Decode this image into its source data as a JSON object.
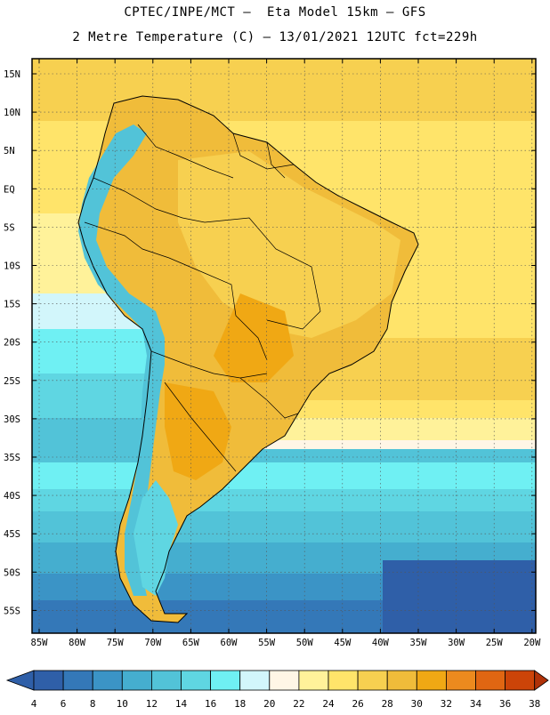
{
  "header": {
    "line1": "CPTEC/INPE/MCT –  Eta Model 15km – GFS",
    "line2": "2 Metre Temperature (C) – 13/01/2021 12UTC fct=229h"
  },
  "axes": {
    "lat_labels": [
      "15N",
      "10N",
      "5N",
      "EQ",
      "5S",
      "10S",
      "15S",
      "20S",
      "25S",
      "30S",
      "35S",
      "40S",
      "45S",
      "50S",
      "55S"
    ],
    "lon_labels": [
      "85W",
      "80W",
      "75W",
      "70W",
      "65W",
      "60W",
      "55W",
      "50W",
      "45W",
      "40W",
      "35W",
      "30W",
      "25W",
      "20W"
    ]
  },
  "colorbar": {
    "labels": [
      "4",
      "6",
      "8",
      "10",
      "12",
      "14",
      "16",
      "18",
      "20",
      "22",
      "24",
      "26",
      "28",
      "30",
      "32",
      "34",
      "36",
      "38"
    ],
    "colors": [
      "#2f5fa8",
      "#3478b8",
      "#3b94c6",
      "#45aecf",
      "#52c3d8",
      "#5fd6e2",
      "#6ff0f3",
      "#d2f6fb",
      "#fff6e6",
      "#fff29a",
      "#ffe46a",
      "#f7d050",
      "#f0bc3a",
      "#f0a814",
      "#ec8a1e",
      "#e06612",
      "#cc4408",
      "#b03208"
    ]
  }
}
